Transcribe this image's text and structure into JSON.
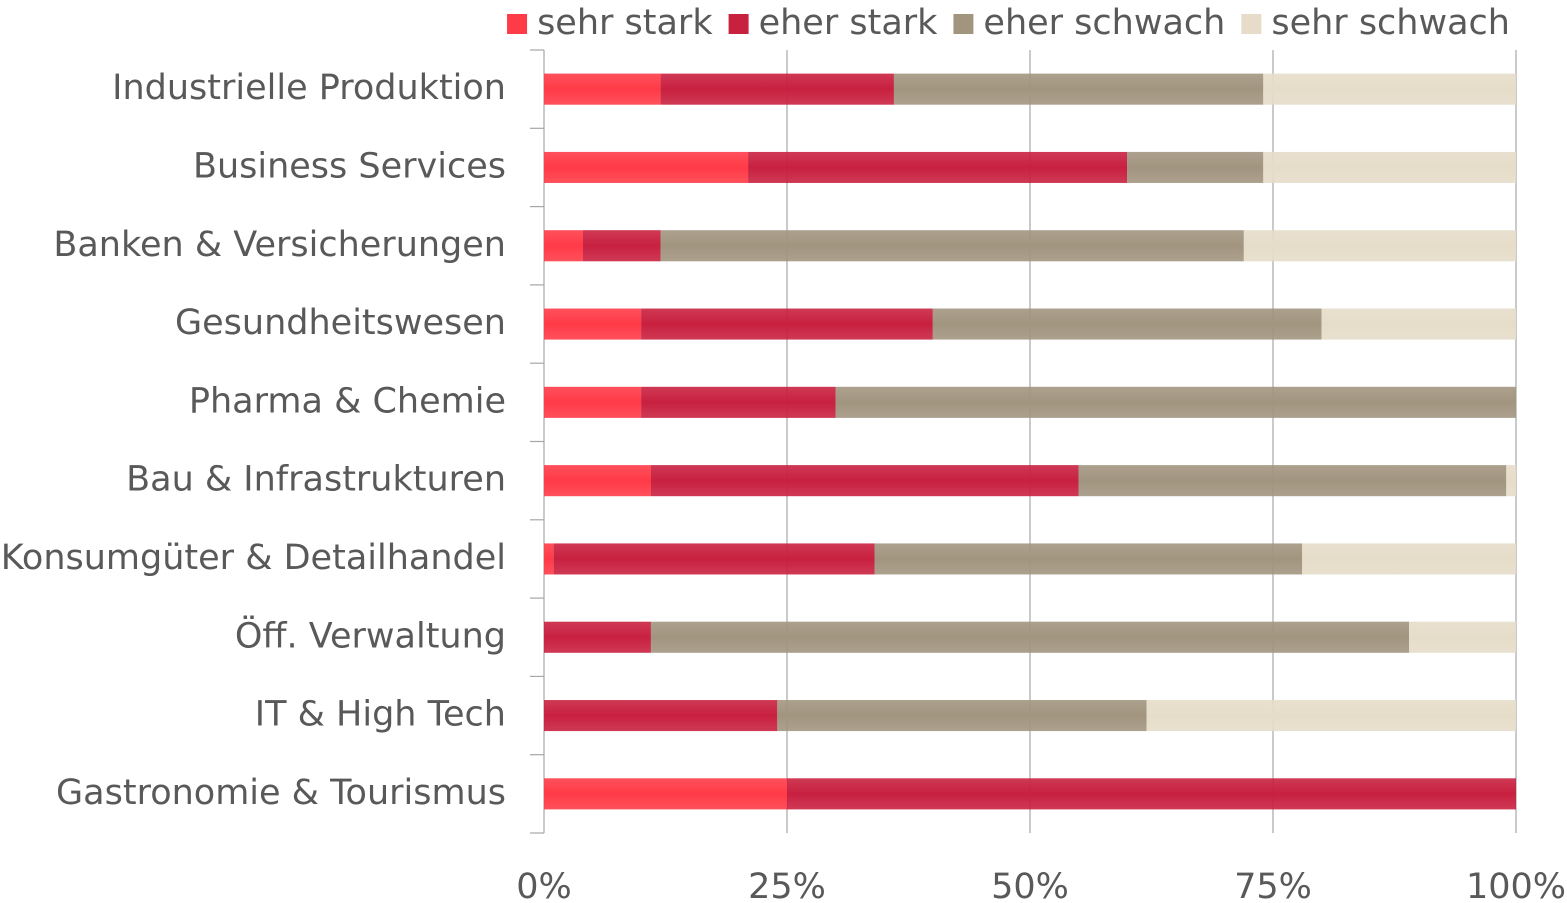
{
  "chart_data": {
    "type": "stacked-bar-horizontal",
    "categories": [
      "Industrielle Produktion",
      "Business Services",
      "Banken & Versicherungen",
      "Gesundheitswesen",
      "Pharma & Chemie",
      "Bau & Infrastrukturen",
      "Konsumgüter & Detailhandel",
      "Öff. Verwaltung",
      "IT & High Tech",
      "Gastronomie & Tourismus"
    ],
    "series": [
      {
        "name": "sehr stark",
        "color": "#ff3b47",
        "values": [
          12,
          21,
          4,
          10,
          10,
          11,
          1,
          0,
          0,
          25
        ]
      },
      {
        "name": "eher stark",
        "color": "#c8203f",
        "values": [
          24,
          39,
          8,
          30,
          20,
          44,
          33,
          11,
          24,
          75
        ]
      },
      {
        "name": "eher schwach",
        "color": "#a29580",
        "values": [
          38,
          14,
          60,
          40,
          70,
          44,
          44,
          78,
          38,
          0
        ]
      },
      {
        "name": "sehr schwach",
        "color": "#e6dcc9",
        "values": [
          26,
          26,
          28,
          20,
          0,
          1,
          22,
          11,
          38,
          0
        ]
      }
    ],
    "xlim": [
      0,
      100
    ],
    "xticks": [
      {
        "value": 0,
        "label": "0%"
      },
      {
        "value": 25,
        "label": "25%"
      },
      {
        "value": 50,
        "label": "50%"
      },
      {
        "value": 75,
        "label": "75%"
      },
      {
        "value": 100,
        "label": "100%"
      }
    ],
    "grid": true,
    "legend": "top"
  }
}
